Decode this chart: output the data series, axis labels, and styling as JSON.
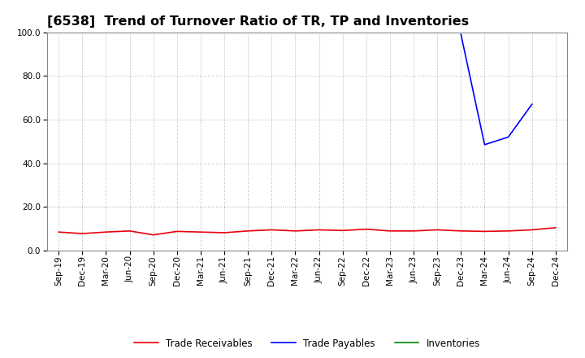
{
  "title": "[6538]  Trend of Turnover Ratio of TR, TP and Inventories",
  "x_labels": [
    "Sep-19",
    "Dec-19",
    "Mar-20",
    "Jun-20",
    "Sep-20",
    "Dec-20",
    "Mar-21",
    "Jun-21",
    "Sep-21",
    "Dec-21",
    "Mar-22",
    "Jun-22",
    "Sep-22",
    "Dec-22",
    "Mar-23",
    "Jun-23",
    "Sep-23",
    "Dec-23",
    "Mar-24",
    "Jun-24",
    "Sep-24",
    "Dec-24"
  ],
  "trade_receivables": [
    8.5,
    7.8,
    8.5,
    9.0,
    7.2,
    8.8,
    8.5,
    8.2,
    9.0,
    9.5,
    9.0,
    9.5,
    9.2,
    9.8,
    9.0,
    9.0,
    9.5,
    9.0,
    8.8,
    9.0,
    9.5,
    10.5
  ],
  "trade_payables": [
    null,
    null,
    null,
    null,
    null,
    null,
    null,
    null,
    null,
    null,
    null,
    null,
    null,
    null,
    null,
    null,
    null,
    99.0,
    48.5,
    52.0,
    67.0,
    null
  ],
  "inventories": [
    null,
    null,
    null,
    null,
    null,
    null,
    null,
    null,
    null,
    null,
    null,
    null,
    null,
    null,
    null,
    null,
    null,
    null,
    null,
    null,
    null,
    null
  ],
  "ylim": [
    0.0,
    100.0
  ],
  "yticks": [
    0.0,
    20.0,
    40.0,
    60.0,
    80.0,
    100.0
  ],
  "color_tr": "#e8000d",
  "color_tp": "#0000ff",
  "color_inv": "#008000",
  "background_color": "#ffffff",
  "grid_color": "#aaaaaa",
  "legend_tr": "Trade Receivables",
  "legend_tp": "Trade Payables",
  "legend_inv": "Inventories",
  "title_fontsize": 11.5,
  "tick_fontsize": 7.5
}
